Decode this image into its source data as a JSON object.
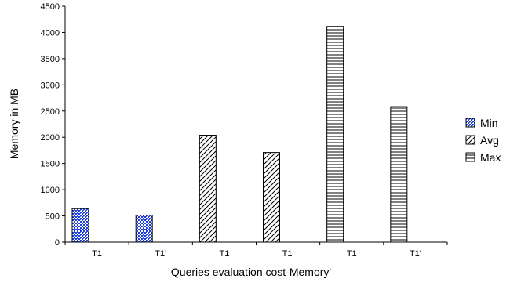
{
  "chart_data": {
    "type": "bar",
    "title": "",
    "xlabel": "Queries evaluation cost-Memory'",
    "ylabel": "Memory in MB",
    "ylim": [
      0,
      4500
    ],
    "yticks": [
      0,
      500,
      1000,
      1500,
      2000,
      2500,
      3000,
      3500,
      4000,
      4500
    ],
    "categories": [
      "T1",
      "T1'",
      "T1",
      "T1'",
      "T1",
      "T1'"
    ],
    "series": [
      {
        "name": "Min",
        "values": [
          640,
          515,
          null,
          null,
          null,
          null
        ],
        "pattern": "checker-blue",
        "color": "#1f3fe0"
      },
      {
        "name": "Avg",
        "values": [
          null,
          null,
          2040,
          1710,
          null,
          null
        ],
        "pattern": "diagonal"
      },
      {
        "name": "Max",
        "values": [
          null,
          null,
          null,
          null,
          4115,
          2585
        ],
        "pattern": "horizontal"
      }
    ],
    "grid": false,
    "legend_position": "right"
  }
}
